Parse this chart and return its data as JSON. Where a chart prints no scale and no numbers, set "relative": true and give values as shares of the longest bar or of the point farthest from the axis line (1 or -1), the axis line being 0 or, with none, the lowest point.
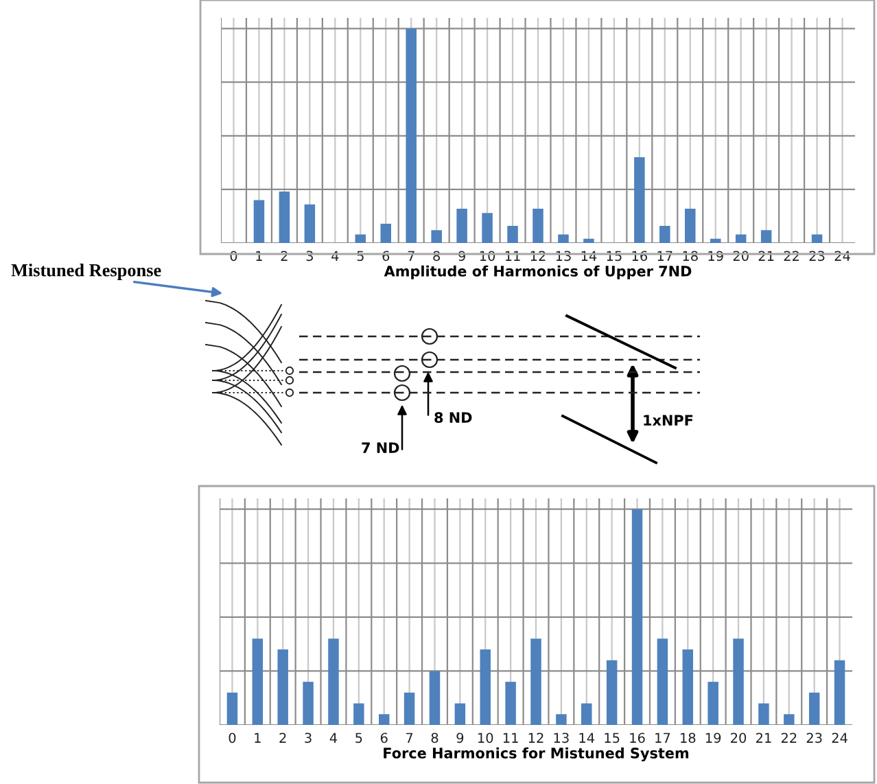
{
  "chart_data": [
    {
      "type": "bar",
      "xlabel": "Amplitude of Harmonics of Upper 7ND",
      "relative": true,
      "grid": true,
      "legend": false,
      "categories": [
        "0",
        "1",
        "2",
        "3",
        "4",
        "5",
        "6",
        "7",
        "8",
        "9",
        "10",
        "11",
        "12",
        "13",
        "14",
        "15",
        "16",
        "17",
        "18",
        "19",
        "20",
        "21",
        "22",
        "23",
        "24"
      ],
      "series": [
        {
          "color": "#4f81bd",
          "values": [
            0,
            0.2,
            0.24,
            0.18,
            0,
            0.04,
            0.09,
            1,
            0.06,
            0.16,
            0.14,
            0.08,
            0.16,
            0.04,
            0.02,
            0,
            0.4,
            0.08,
            0.16,
            0.02,
            0.04,
            0.06,
            0,
            0.04,
            0
          ]
        }
      ]
    },
    {
      "type": "other",
      "annotations": [
        "Mistuned Response",
        "8 ND",
        "7 ND",
        "1xNPF"
      ]
    },
    {
      "type": "bar",
      "xlabel": "Force Harmonics for Mistuned System",
      "relative": true,
      "grid": true,
      "legend": false,
      "categories": [
        "0",
        "1",
        "2",
        "3",
        "4",
        "5",
        "6",
        "7",
        "8",
        "9",
        "10",
        "11",
        "12",
        "13",
        "14",
        "15",
        "16",
        "17",
        "18",
        "19",
        "20",
        "21",
        "22",
        "23",
        "24"
      ],
      "series": [
        {
          "color": "#4f81bd",
          "values": [
            0.15,
            0.4,
            0.35,
            0.2,
            0.4,
            0.1,
            0.05,
            0.15,
            0.25,
            0.1,
            0.35,
            0.2,
            0.4,
            0.05,
            0.1,
            0.3,
            1,
            0.4,
            0.35,
            0.2,
            0.4,
            0.1,
            0.05,
            0.15,
            0.3
          ]
        }
      ]
    }
  ]
}
